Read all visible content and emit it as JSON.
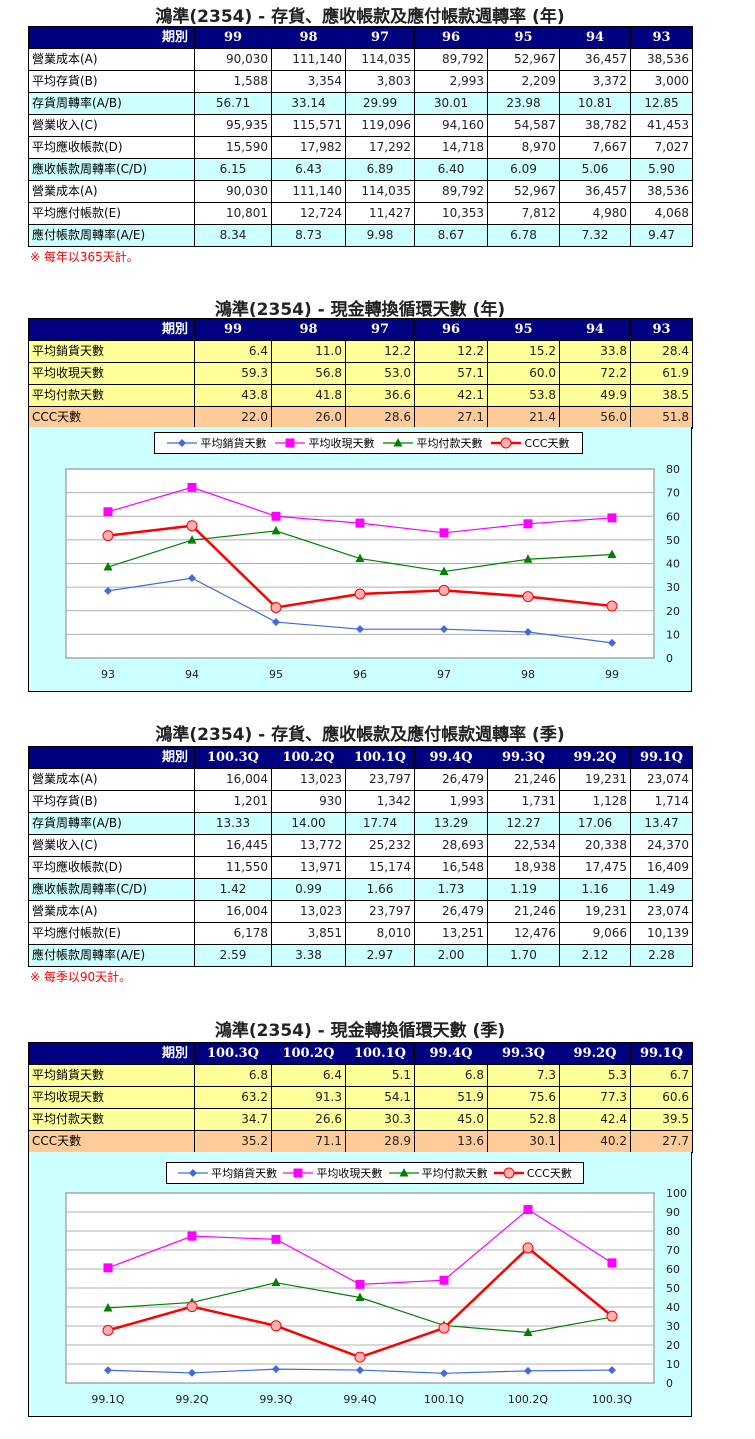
{
  "company": "鴻準(2354)",
  "sections": {
    "annual_turnover": {
      "title": "鴻準(2354) -  存貨、應收帳款及應付帳款週轉率 (年)",
      "corner_label": "期別",
      "periods": [
        "99",
        "98",
        "97",
        "96",
        "95",
        "94",
        "93"
      ],
      "rows": [
        {
          "label": "營業成本(A)",
          "style": "white",
          "values": [
            "90,030",
            "111,140",
            "114,035",
            "89,792",
            "52,967",
            "36,457",
            "38,536"
          ]
        },
        {
          "label": "平均存貨(B)",
          "style": "white",
          "values": [
            "1,588",
            "3,354",
            "3,803",
            "2,993",
            "2,209",
            "3,372",
            "3,000"
          ]
        },
        {
          "label": "存貨周轉率(A/B)",
          "style": "cyan",
          "values": [
            "56.71",
            "33.14",
            "29.99",
            "30.01",
            "23.98",
            "10.81",
            "12.85"
          ]
        },
        {
          "label": "營業收入(C)",
          "style": "white",
          "values": [
            "95,935",
            "115,571",
            "119,096",
            "94,160",
            "54,587",
            "38,782",
            "41,453"
          ]
        },
        {
          "label": "平均應收帳款(D)",
          "style": "white",
          "values": [
            "15,590",
            "17,982",
            "17,292",
            "14,718",
            "8,970",
            "7,667",
            "7,027"
          ]
        },
        {
          "label": "應收帳款周轉率(C/D)",
          "style": "cyan",
          "values": [
            "6.15",
            "6.43",
            "6.89",
            "6.40",
            "6.09",
            "5.06",
            "5.90"
          ]
        },
        {
          "label": "營業成本(A)",
          "style": "white",
          "values": [
            "90,030",
            "111,140",
            "114,035",
            "89,792",
            "52,967",
            "36,457",
            "38,536"
          ]
        },
        {
          "label": "平均應付帳款(E)",
          "style": "white",
          "values": [
            "10,801",
            "12,724",
            "11,427",
            "10,353",
            "7,812",
            "4,980",
            "4,068"
          ]
        },
        {
          "label": "應付帳款周轉率(A/E)",
          "style": "cyan",
          "values": [
            "8.34",
            "8.73",
            "9.98",
            "8.67",
            "6.78",
            "7.32",
            "9.47"
          ]
        }
      ],
      "note": "※ 每年以365天計。"
    },
    "annual_ccc": {
      "title": "鴻準(2354) -  現金轉換循環天數 (年)",
      "corner_label": "期別",
      "periods": [
        "99",
        "98",
        "97",
        "96",
        "95",
        "94",
        "93"
      ],
      "rows": [
        {
          "label": "平均銷貨天數",
          "style": "yellow",
          "values": [
            "6.4",
            "11.0",
            "12.2",
            "12.2",
            "15.2",
            "33.8",
            "28.4"
          ]
        },
        {
          "label": "平均收現天數",
          "style": "yellow",
          "values": [
            "59.3",
            "56.8",
            "53.0",
            "57.1",
            "60.0",
            "72.2",
            "61.9"
          ]
        },
        {
          "label": "平均付款天數",
          "style": "yellow",
          "values": [
            "43.8",
            "41.8",
            "36.6",
            "42.1",
            "53.8",
            "49.9",
            "38.5"
          ]
        },
        {
          "label": "CCC天數",
          "style": "orange",
          "values": [
            "22.0",
            "26.0",
            "28.6",
            "27.1",
            "21.4",
            "56.0",
            "51.8"
          ]
        }
      ]
    },
    "quarterly_turnover": {
      "title": "鴻準(2354) -  存貨、應收帳款及應付帳款週轉率 (季)",
      "corner_label": "期別",
      "periods": [
        "100.3Q",
        "100.2Q",
        "100.1Q",
        "99.4Q",
        "99.3Q",
        "99.2Q",
        "99.1Q"
      ],
      "rows": [
        {
          "label": "營業成本(A)",
          "style": "white",
          "values": [
            "16,004",
            "13,023",
            "23,797",
            "26,479",
            "21,246",
            "19,231",
            "23,074"
          ]
        },
        {
          "label": "平均存貨(B)",
          "style": "white",
          "values": [
            "1,201",
            "930",
            "1,342",
            "1,993",
            "1,731",
            "1,128",
            "1,714"
          ]
        },
        {
          "label": "存貨周轉率(A/B)",
          "style": "cyan",
          "values": [
            "13.33",
            "14.00",
            "17.74",
            "13.29",
            "12.27",
            "17.06",
            "13.47"
          ]
        },
        {
          "label": "營業收入(C)",
          "style": "white",
          "values": [
            "16,445",
            "13,772",
            "25,232",
            "28,693",
            "22,534",
            "20,338",
            "24,370"
          ]
        },
        {
          "label": "平均應收帳款(D)",
          "style": "white",
          "values": [
            "11,550",
            "13,971",
            "15,174",
            "16,548",
            "18,938",
            "17,475",
            "16,409"
          ]
        },
        {
          "label": "應收帳款周轉率(C/D)",
          "style": "cyan",
          "values": [
            "1.42",
            "0.99",
            "1.66",
            "1.73",
            "1.19",
            "1.16",
            "1.49"
          ]
        },
        {
          "label": "營業成本(A)",
          "style": "white",
          "values": [
            "16,004",
            "13,023",
            "23,797",
            "26,479",
            "21,246",
            "19,231",
            "23,074"
          ]
        },
        {
          "label": "平均應付帳款(E)",
          "style": "white",
          "values": [
            "6,178",
            "3,851",
            "8,010",
            "13,251",
            "12,476",
            "9,066",
            "10,139"
          ]
        },
        {
          "label": "應付帳款周轉率(A/E)",
          "style": "cyan",
          "values": [
            "2.59",
            "3.38",
            "2.97",
            "2.00",
            "1.70",
            "2.12",
            "2.28"
          ]
        }
      ],
      "note": "※ 每季以90天計。"
    },
    "quarterly_ccc": {
      "title": "鴻準(2354) -  現金轉換循環天數 (季)",
      "corner_label": "期別",
      "periods": [
        "100.3Q",
        "100.2Q",
        "100.1Q",
        "99.4Q",
        "99.3Q",
        "99.2Q",
        "99.1Q"
      ],
      "rows": [
        {
          "label": "平均銷貨天數",
          "style": "yellow",
          "values": [
            "6.8",
            "6.4",
            "5.1",
            "6.8",
            "7.3",
            "5.3",
            "6.7"
          ]
        },
        {
          "label": "平均收現天數",
          "style": "yellow",
          "values": [
            "63.2",
            "91.3",
            "54.1",
            "51.9",
            "75.6",
            "77.3",
            "60.6"
          ]
        },
        {
          "label": "平均付款天數",
          "style": "yellow",
          "values": [
            "34.7",
            "26.6",
            "30.3",
            "45.0",
            "52.8",
            "42.4",
            "39.5"
          ]
        },
        {
          "label": "CCC天數",
          "style": "orange",
          "values": [
            "35.2",
            "71.1",
            "28.9",
            "13.6",
            "30.1",
            "40.2",
            "27.7"
          ]
        }
      ]
    }
  },
  "chart_data": [
    {
      "type": "line",
      "title": "鴻準(2354) -  現金轉換循環天數 (年)",
      "categories": [
        "93",
        "94",
        "95",
        "96",
        "97",
        "98",
        "99"
      ],
      "series": [
        {
          "name": "平均銷貨天數",
          "color": "#4169e1",
          "marker": "diamond",
          "values": [
            28.4,
            33.8,
            15.2,
            12.2,
            12.2,
            11.0,
            6.4
          ]
        },
        {
          "name": "平均收現天數",
          "color": "#ff00ff",
          "marker": "square",
          "values": [
            61.9,
            72.2,
            60.0,
            57.1,
            53.0,
            56.8,
            59.3
          ]
        },
        {
          "name": "平均付款天數",
          "color": "#008000",
          "marker": "triangle",
          "values": [
            38.5,
            49.9,
            53.8,
            42.1,
            36.6,
            41.8,
            43.8
          ]
        },
        {
          "name": "CCC天數",
          "color": "#ff0000",
          "marker": "circle",
          "values": [
            51.8,
            56.0,
            21.4,
            27.1,
            28.6,
            26.0,
            22.0
          ]
        }
      ],
      "yticks": [
        0,
        10,
        20,
        30,
        40,
        50,
        60,
        70,
        80
      ],
      "ylim": [
        0,
        80
      ],
      "xlabel": "",
      "ylabel": "",
      "grid": true,
      "y_axis_position": "right",
      "legend_position": "top"
    },
    {
      "type": "line",
      "title": "鴻準(2354) -  現金轉換循環天數 (季)",
      "categories": [
        "99.1Q",
        "99.2Q",
        "99.3Q",
        "99.4Q",
        "100.1Q",
        "100.2Q",
        "100.3Q"
      ],
      "series": [
        {
          "name": "平均銷貨天數",
          "color": "#4169e1",
          "marker": "diamond",
          "values": [
            6.7,
            5.3,
            7.3,
            6.8,
            5.1,
            6.4,
            6.8
          ]
        },
        {
          "name": "平均收現天數",
          "color": "#ff00ff",
          "marker": "square",
          "values": [
            60.6,
            77.3,
            75.6,
            51.9,
            54.1,
            91.3,
            63.2
          ]
        },
        {
          "name": "平均付款天數",
          "color": "#008000",
          "marker": "triangle",
          "values": [
            39.5,
            42.4,
            52.8,
            45.0,
            30.3,
            26.6,
            34.7
          ]
        },
        {
          "name": "CCC天數",
          "color": "#ff0000",
          "marker": "circle",
          "values": [
            27.7,
            40.2,
            30.1,
            13.6,
            28.9,
            71.1,
            35.2
          ]
        }
      ],
      "yticks": [
        0,
        10,
        20,
        30,
        40,
        50,
        60,
        70,
        80,
        90,
        100
      ],
      "ylim": [
        0,
        100
      ],
      "xlabel": "",
      "ylabel": "",
      "grid": true,
      "y_axis_position": "right",
      "legend_position": "top"
    }
  ]
}
